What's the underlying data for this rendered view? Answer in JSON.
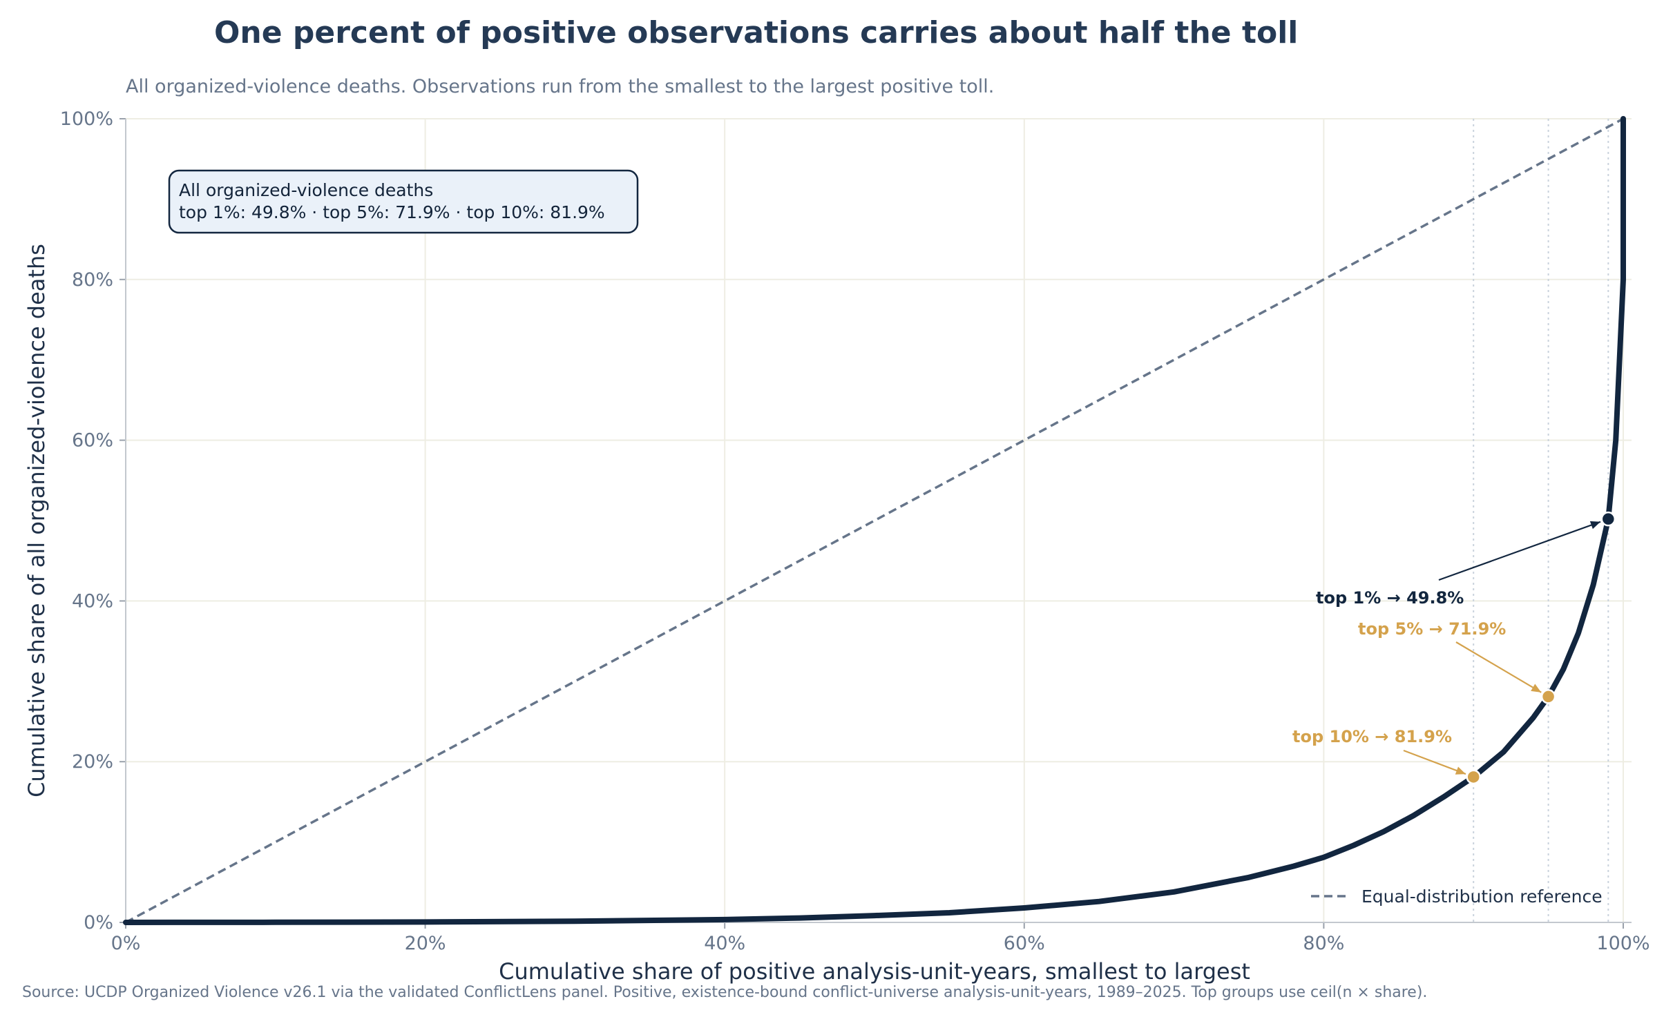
{
  "title": "One percent of positive observations carries about half the toll",
  "subtitle": "All organized-violence deaths. Observations run from the smallest to the largest positive toll.",
  "source": "Source: UCDP Organized Violence v26.1 via the validated ConflictLens panel. Positive, existence-bound conflict-universe analysis-unit-years, 1989–2025. Top groups use ceil(n × share).",
  "info_box": {
    "line1": "All organized-violence deaths",
    "line2": "top 1%: 49.8% · top 5%: 71.9% · top 10%: 81.9%"
  },
  "legend": {
    "reference_label": "Equal-distribution reference",
    "placement": "bottom-right"
  },
  "colors": {
    "curve": "#12263f",
    "reference": "#66758a",
    "accent": "#d4a24c",
    "grid": "#eeede3",
    "box_fill": "#eaf1f9"
  },
  "chart_data": {
    "type": "line",
    "xlabel": "Cumulative share of positive analysis-unit-years, smallest to largest",
    "ylabel": "Cumulative share of all organized-violence deaths",
    "xlim": [
      0,
      100
    ],
    "ylim": [
      0,
      100
    ],
    "x_ticks": [
      "0%",
      "20%",
      "40%",
      "60%",
      "80%",
      "100%"
    ],
    "y_ticks": [
      "0%",
      "20%",
      "40%",
      "60%",
      "80%",
      "100%"
    ],
    "grid": true,
    "reference_line": {
      "x": [
        0,
        100
      ],
      "y": [
        0,
        100
      ]
    },
    "curve": {
      "x": [
        0,
        10,
        20,
        30,
        40,
        45,
        50,
        55,
        60,
        65,
        70,
        75,
        78,
        80,
        82,
        84,
        86,
        88,
        90,
        92,
        94,
        95,
        96,
        97,
        98,
        99,
        99.5,
        100,
        100
      ],
      "y": [
        0,
        0.02,
        0.05,
        0.15,
        0.35,
        0.55,
        0.85,
        1.2,
        1.8,
        2.6,
        3.8,
        5.6,
        7.0,
        8.1,
        9.6,
        11.3,
        13.3,
        15.6,
        18.1,
        21.2,
        25.5,
        28.1,
        31.5,
        36.0,
        42.0,
        50.2,
        60.0,
        80.0,
        100
      ]
    },
    "markers": [
      {
        "label": "top 1% → 49.8%",
        "x": 99,
        "y": 50.2,
        "color": "#12263f"
      },
      {
        "label": "top 5% → 71.9%",
        "x": 95,
        "y": 28.1,
        "color": "#d4a24c"
      },
      {
        "label": "top 10% → 81.9%",
        "x": 90,
        "y": 18.1,
        "color": "#d4a24c"
      }
    ],
    "threshold_lines_x": [
      90,
      95,
      99
    ]
  }
}
